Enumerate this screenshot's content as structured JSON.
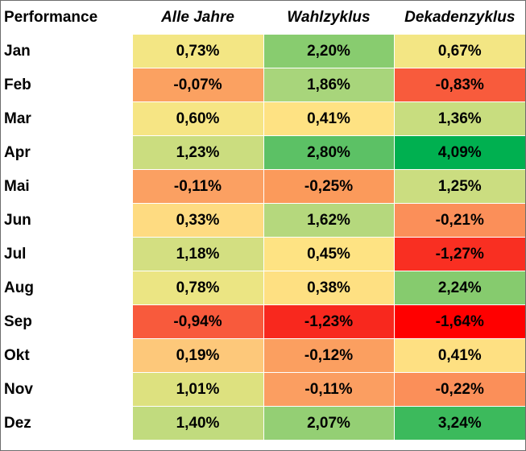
{
  "table": {
    "header": {
      "label": "Performance",
      "columns": [
        "Alle Jahre",
        "Wahlzyklus",
        "Dekadenzyklus"
      ]
    },
    "rows": [
      {
        "month": "Jan",
        "cells": [
          {
            "value": "0,73%",
            "color": "#f3e684"
          },
          {
            "value": "2,20%",
            "color": "#88cc6f"
          },
          {
            "value": "0,67%",
            "color": "#f3e684"
          }
        ]
      },
      {
        "month": "Feb",
        "cells": [
          {
            "value": "-0,07%",
            "color": "#fba161"
          },
          {
            "value": "1,86%",
            "color": "#a8d57b"
          },
          {
            "value": "-0,83%",
            "color": "#f85b3c"
          }
        ]
      },
      {
        "month": "Mar",
        "cells": [
          {
            "value": "0,60%",
            "color": "#f6e584"
          },
          {
            "value": "0,41%",
            "color": "#fee283"
          },
          {
            "value": "1,36%",
            "color": "#c8dd7f"
          }
        ]
      },
      {
        "month": "Apr",
        "cells": [
          {
            "value": "1,23%",
            "color": "#cbdd7f"
          },
          {
            "value": "2,80%",
            "color": "#5cc165"
          },
          {
            "value": "4,09%",
            "color": "#00b050"
          }
        ]
      },
      {
        "month": "Mai",
        "cells": [
          {
            "value": "-0,11%",
            "color": "#fba062"
          },
          {
            "value": "-0,25%",
            "color": "#fb9a5b"
          },
          {
            "value": "1,25%",
            "color": "#cbdd80"
          }
        ]
      },
      {
        "month": "Jun",
        "cells": [
          {
            "value": "0,33%",
            "color": "#fedb81"
          },
          {
            "value": "1,62%",
            "color": "#b5d87d"
          },
          {
            "value": "-0,21%",
            "color": "#fb8f59"
          }
        ]
      },
      {
        "month": "Jul",
        "cells": [
          {
            "value": "1,18%",
            "color": "#d3df81"
          },
          {
            "value": "0,45%",
            "color": "#fee383"
          },
          {
            "value": "-1,27%",
            "color": "#f92f22"
          }
        ]
      },
      {
        "month": "Aug",
        "cells": [
          {
            "value": "0,78%",
            "color": "#ebe583"
          },
          {
            "value": "0,38%",
            "color": "#fee082"
          },
          {
            "value": "2,24%",
            "color": "#86cb6e"
          }
        ]
      },
      {
        "month": "Sep",
        "cells": [
          {
            "value": "-0,94%",
            "color": "#f85a3c"
          },
          {
            "value": "-1,23%",
            "color": "#f8281e"
          },
          {
            "value": "-1,64%",
            "color": "#ff0000"
          }
        ]
      },
      {
        "month": "Okt",
        "cells": [
          {
            "value": "0,19%",
            "color": "#fdc87a"
          },
          {
            "value": "-0,12%",
            "color": "#fb9f60"
          },
          {
            "value": "0,41%",
            "color": "#fee082"
          }
        ]
      },
      {
        "month": "Nov",
        "cells": [
          {
            "value": "1,01%",
            "color": "#dde17f"
          },
          {
            "value": "-0,11%",
            "color": "#fb9e61"
          },
          {
            "value": "-0,22%",
            "color": "#fb8f59"
          }
        ]
      },
      {
        "month": "Dez",
        "cells": [
          {
            "value": "1,40%",
            "color": "#c1db7e"
          },
          {
            "value": "2,07%",
            "color": "#94cf74"
          },
          {
            "value": "3,24%",
            "color": "#3cba5c"
          }
        ]
      }
    ]
  }
}
